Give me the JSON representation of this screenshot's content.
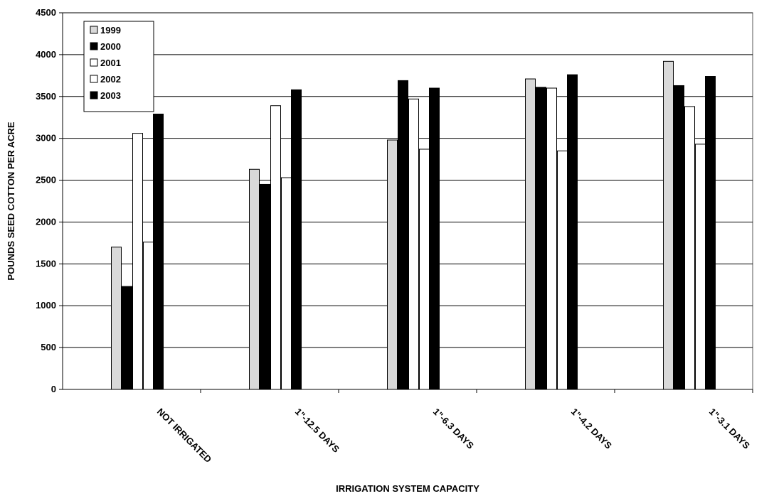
{
  "chart_data": {
    "type": "bar",
    "xlabel": "IRRIGATION SYSTEM CAPACITY",
    "ylabel": "POUNDS SEED COTTON PER ACRE",
    "ylim": [
      0,
      4500
    ],
    "yticks": [
      0,
      500,
      1000,
      1500,
      2000,
      2500,
      3000,
      3500,
      4000,
      4500
    ],
    "grid": true,
    "legend_position": "top-left",
    "categories": [
      "NOT IRRIGATED",
      "1\"-12.5 DAYS",
      "1\"-6.3 DAYS",
      "1\"-4.2 DAYS",
      "1\"-3.1 DAYS"
    ],
    "series": [
      {
        "name": "1999",
        "values": [
          1700,
          2630,
          2980,
          3710,
          3920
        ],
        "color": "#d9d9d9"
      },
      {
        "name": "2000",
        "values": [
          1230,
          2450,
          3690,
          3610,
          3630
        ],
        "color": "#000000"
      },
      {
        "name": "2001",
        "values": [
          3060,
          3390,
          3470,
          3600,
          3380
        ],
        "color": "#ffffff"
      },
      {
        "name": "2002",
        "values": [
          1760,
          2530,
          2870,
          2850,
          2930
        ],
        "color": "#ffffff"
      },
      {
        "name": "2003",
        "values": [
          3290,
          3580,
          3600,
          3760,
          3740
        ],
        "color": "#000000"
      }
    ]
  }
}
